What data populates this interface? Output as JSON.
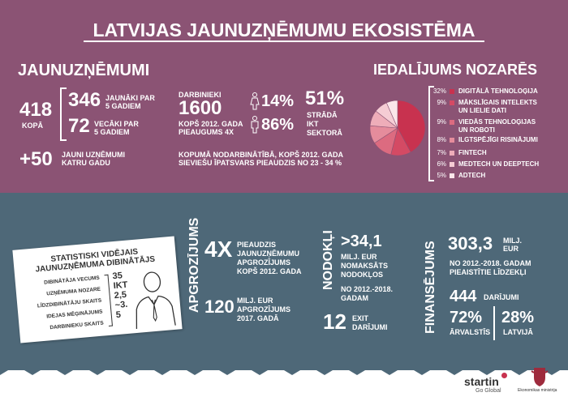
{
  "title": "LATVIJAS JAUNUZŅĒMUMU EKOSISTĒMA",
  "startups": {
    "heading": "JAUNUZŅĒMUMI",
    "total_value": "418",
    "total_label": "KOPĀ",
    "young_value": "346",
    "young_label_1": "JAUNĀKI PAR",
    "young_label_2": "5 GADIEM",
    "old_value": "72",
    "old_label_1": "VECĀKI PAR",
    "old_label_2": "5 GADIEM",
    "new_value": "+50",
    "new_label_1": "JAUNI UZŅĒMUMI",
    "new_label_2": "KATRU GADU"
  },
  "employees": {
    "label": "DARBINIEKI",
    "value": "1600",
    "since_1": "KOPŠ 2012. GADA",
    "since_2": "PIEAUGUMS 4X",
    "female_pct": "14%",
    "male_pct": "86%",
    "ict_pct": "51%",
    "ict_label_1": "STRĀDĀ",
    "ict_label_2": "IKT",
    "ict_label_3": "SEKTORĀ",
    "note_1": "KOPUMĀ NODARBINĀTĪBĀ, KOPŠ 2012. GADA",
    "note_2": "SIEVIEŠU ĪPATSVARS PIEAUDZIS NO 23 - 34 %"
  },
  "sectors": {
    "heading": "IEDALĪJUMS NOZARĒS",
    "items": [
      {
        "pct": "32%",
        "label_1": "DIGITĀLĀ TEHNOLOĢIJA",
        "label_2": "",
        "color": "#c8324f"
      },
      {
        "pct": "9%",
        "label_1": "MĀKSLĪGAIS INTELEKTS",
        "label_2": "UN LIELIE DATI",
        "color": "#d44a64"
      },
      {
        "pct": "9%",
        "label_1": "VIEDĀS TEHNOLOĢIJAS",
        "label_2": "UN ROBOTI",
        "color": "#dc6b80"
      },
      {
        "pct": "8%",
        "label_1": "ILGTSPĒJĪGI RISINĀJUMI",
        "label_2": "",
        "color": "#e58c9c"
      },
      {
        "pct": "7%",
        "label_1": "FINTECH",
        "label_2": "",
        "color": "#eeadb9"
      },
      {
        "pct": "6%",
        "label_1": "MEDTECH UN DEEPTECH",
        "label_2": "",
        "color": "#f5ccd4"
      },
      {
        "pct": "5%",
        "label_1": "ADTECH",
        "label_2": "",
        "color": "#fbe6ea"
      }
    ]
  },
  "chart_data": {
    "type": "pie",
    "title": "IEDALĪJUMS NOZARĒS",
    "categories": [
      "DIGITĀLĀ TEHNOLOĢIJA",
      "MĀKSLĪGAIS INTELEKTS UN LIELIE DATI",
      "VIEDĀS TEHNOLOĢIJAS UN ROBOTI",
      "ILGTSPĒJĪGI RISINĀJUMI",
      "FINTECH",
      "MEDTECH UN DEEPTECH",
      "ADTECH"
    ],
    "values": [
      32,
      9,
      9,
      8,
      7,
      6,
      5
    ]
  },
  "founder": {
    "title_1": "STATISTISKI VIDĒJAIS",
    "title_2": "JAUNUZŅĒMUMA DIBINĀTĀJS",
    "rows": [
      {
        "label": "DIBINĀTĀJA VECUMS",
        "value": "35"
      },
      {
        "label": "UZŅĒMUMA NOZARE",
        "value": "IKT"
      },
      {
        "label": "LĪDZDIBINĀTĀJU SKAITS",
        "value": "2,5"
      },
      {
        "label": "IDEJAS MĒĢINĀJUMS",
        "value": "~3."
      },
      {
        "label": "DARBINIEKU SKAITS",
        "value": "5"
      }
    ]
  },
  "turnover": {
    "vertical_label": "APGROZĪJUMS",
    "growth_value": "4X",
    "growth_text_1": "PIEAUDZIS",
    "growth_text_2": "JAUNUZŅĒMUMU",
    "growth_text_3": "APGROZĪJUMS",
    "growth_text_4": "KOPŠ 2012. GADA",
    "amount_value": "120",
    "amount_text_1": "MILJ. EUR",
    "amount_text_2": "APGROZĪJUMS",
    "amount_text_3": "2017. GADĀ"
  },
  "taxes": {
    "vertical_label": "NODOKĻI",
    "value": ">34,1",
    "text_1": "MILJ. EUR",
    "text_2": "NOMAKSĀTS",
    "text_3": "NODOKĻOS",
    "period_1": "NO 2012.-2018.",
    "period_2": "GADAM",
    "exit_value": "12",
    "exit_text_1": "EXIT",
    "exit_text_2": "DARĪJUMI"
  },
  "financing": {
    "vertical_label": "FINANSĒJUMS",
    "value": "303,3",
    "unit_1": "MILJ.",
    "unit_2": "EUR",
    "text_1": "NO 2012.-2018. GADAM",
    "text_2": "PIEAISTĪTIE LĪDZEKĻI",
    "deals_value": "444",
    "deals_label": "DARĪJUMI",
    "foreign_pct": "72%",
    "foreign_label": "ĀRVALSTĪS",
    "latvia_pct": "28%",
    "latvia_label": "LATVIJĀ"
  },
  "footer": {
    "startin_logo": "startin",
    "startin_sub": "Go Global",
    "ministry": "Ekonomikas ministrija"
  }
}
